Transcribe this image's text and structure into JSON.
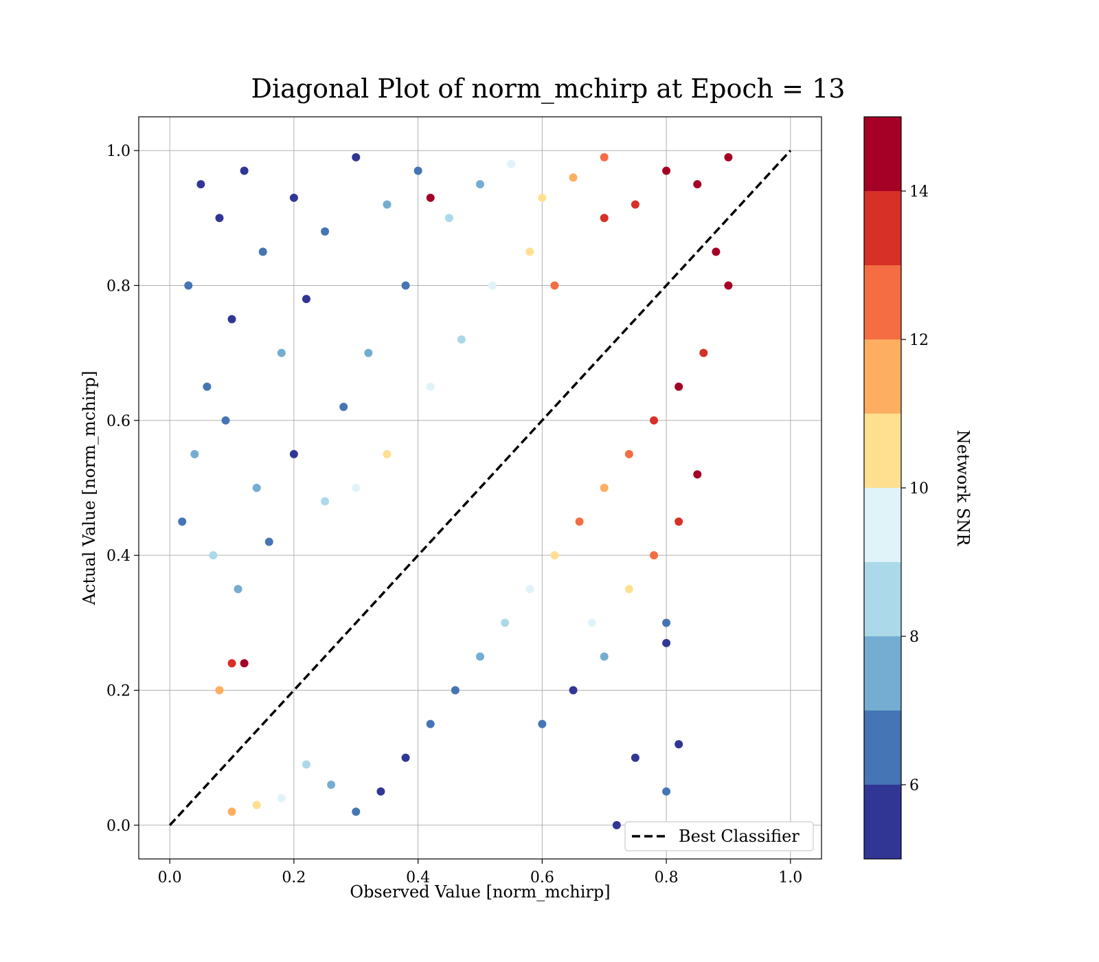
{
  "chart_data": {
    "type": "scatter",
    "title": "Diagonal Plot of norm_mchirp at Epoch = 13",
    "xlabel": "Observed Value [norm_mchirp]",
    "ylabel": "Actual Value [norm_mchirp]",
    "xlim": [
      -0.05,
      1.05
    ],
    "ylim": [
      -0.05,
      1.05
    ],
    "xticks": [
      "0.0",
      "0.2",
      "0.4",
      "0.6",
      "0.8",
      "1.0"
    ],
    "yticks": [
      "0.0",
      "0.2",
      "0.4",
      "0.6",
      "0.8",
      "1.0"
    ],
    "grid": true,
    "legend": {
      "position": "bottom-right",
      "entries": [
        "Best Classifier"
      ]
    },
    "reference_line": {
      "name": "Best Classifier",
      "x": [
        0,
        1
      ],
      "y": [
        0,
        1
      ],
      "style": "dashed",
      "color": "#000000"
    },
    "colorbar": {
      "label": "Network SNR",
      "min": 5,
      "max": 15,
      "ticks": [
        "6",
        "8",
        "10",
        "12",
        "14"
      ],
      "bands": [
        {
          "from": 5,
          "to": 6,
          "color": "#313695"
        },
        {
          "from": 6,
          "to": 7,
          "color": "#4575b4"
        },
        {
          "from": 7,
          "to": 8,
          "color": "#74add1"
        },
        {
          "from": 8,
          "to": 9,
          "color": "#abd9e9"
        },
        {
          "from": 9,
          "to": 10,
          "color": "#e0f3f8"
        },
        {
          "from": 10,
          "to": 11,
          "color": "#fee090"
        },
        {
          "from": 11,
          "to": 12,
          "color": "#fdae61"
        },
        {
          "from": 12,
          "to": 13,
          "color": "#f46d43"
        },
        {
          "from": 13,
          "to": 14,
          "color": "#d73027"
        },
        {
          "from": 14,
          "to": 15,
          "color": "#a50026"
        }
      ]
    },
    "points": [
      {
        "x": 0.05,
        "y": 0.95,
        "snr": 5.2
      },
      {
        "x": 0.08,
        "y": 0.9,
        "snr": 5.5
      },
      {
        "x": 0.12,
        "y": 0.97,
        "snr": 5.8
      },
      {
        "x": 0.15,
        "y": 0.85,
        "snr": 6.2
      },
      {
        "x": 0.2,
        "y": 0.93,
        "snr": 5.1
      },
      {
        "x": 0.25,
        "y": 0.88,
        "snr": 6.5
      },
      {
        "x": 0.3,
        "y": 0.99,
        "snr": 5.3
      },
      {
        "x": 0.03,
        "y": 0.8,
        "snr": 6.8
      },
      {
        "x": 0.1,
        "y": 0.75,
        "snr": 5.6
      },
      {
        "x": 0.18,
        "y": 0.7,
        "snr": 7.2
      },
      {
        "x": 0.06,
        "y": 0.65,
        "snr": 6.1
      },
      {
        "x": 0.22,
        "y": 0.78,
        "snr": 5.4
      },
      {
        "x": 0.35,
        "y": 0.92,
        "snr": 7.5
      },
      {
        "x": 0.4,
        "y": 0.97,
        "snr": 6.9
      },
      {
        "x": 0.45,
        "y": 0.9,
        "snr": 8.2
      },
      {
        "x": 0.5,
        "y": 0.95,
        "snr": 7.8
      },
      {
        "x": 0.55,
        "y": 0.98,
        "snr": 9.5
      },
      {
        "x": 0.6,
        "y": 0.93,
        "snr": 10.5
      },
      {
        "x": 0.65,
        "y": 0.96,
        "snr": 11.2
      },
      {
        "x": 0.7,
        "y": 0.99,
        "snr": 12.4
      },
      {
        "x": 0.04,
        "y": 0.55,
        "snr": 7.1
      },
      {
        "x": 0.09,
        "y": 0.6,
        "snr": 6.4
      },
      {
        "x": 0.14,
        "y": 0.5,
        "snr": 7.6
      },
      {
        "x": 0.02,
        "y": 0.45,
        "snr": 6.7
      },
      {
        "x": 0.07,
        "y": 0.4,
        "snr": 8.1
      },
      {
        "x": 0.11,
        "y": 0.35,
        "snr": 7.9
      },
      {
        "x": 0.16,
        "y": 0.42,
        "snr": 6.3
      },
      {
        "x": 0.2,
        "y": 0.55,
        "snr": 5.9
      },
      {
        "x": 0.28,
        "y": 0.62,
        "snr": 6.6
      },
      {
        "x": 0.32,
        "y": 0.7,
        "snr": 7.4
      },
      {
        "x": 0.38,
        "y": 0.8,
        "snr": 6.2
      },
      {
        "x": 0.25,
        "y": 0.48,
        "snr": 8.8
      },
      {
        "x": 0.3,
        "y": 0.5,
        "snr": 9.6
      },
      {
        "x": 0.35,
        "y": 0.55,
        "snr": 10.8
      },
      {
        "x": 0.42,
        "y": 0.65,
        "snr": 9.2
      },
      {
        "x": 0.47,
        "y": 0.72,
        "snr": 8.6
      },
      {
        "x": 0.52,
        "y": 0.8,
        "snr": 9.9
      },
      {
        "x": 0.58,
        "y": 0.85,
        "snr": 10.7
      },
      {
        "x": 0.62,
        "y": 0.8,
        "snr": 12.1
      },
      {
        "x": 0.7,
        "y": 0.9,
        "snr": 13.2
      },
      {
        "x": 0.75,
        "y": 0.92,
        "snr": 13.8
      },
      {
        "x": 0.8,
        "y": 0.97,
        "snr": 14.3
      },
      {
        "x": 0.85,
        "y": 0.95,
        "snr": 14.7
      },
      {
        "x": 0.9,
        "y": 0.99,
        "snr": 14.6
      },
      {
        "x": 0.88,
        "y": 0.85,
        "snr": 14.5
      },
      {
        "x": 0.9,
        "y": 0.8,
        "snr": 14.2
      },
      {
        "x": 0.86,
        "y": 0.7,
        "snr": 13.6
      },
      {
        "x": 0.82,
        "y": 0.65,
        "snr": 14.8
      },
      {
        "x": 0.78,
        "y": 0.6,
        "snr": 13.1
      },
      {
        "x": 0.74,
        "y": 0.55,
        "snr": 12.6
      },
      {
        "x": 0.7,
        "y": 0.5,
        "snr": 11.6
      },
      {
        "x": 0.66,
        "y": 0.45,
        "snr": 12.8
      },
      {
        "x": 0.62,
        "y": 0.4,
        "snr": 10.3
      },
      {
        "x": 0.58,
        "y": 0.35,
        "snr": 9.7
      },
      {
        "x": 0.54,
        "y": 0.3,
        "snr": 8.4
      },
      {
        "x": 0.5,
        "y": 0.25,
        "snr": 7.7
      },
      {
        "x": 0.46,
        "y": 0.2,
        "snr": 6.8
      },
      {
        "x": 0.42,
        "y": 0.15,
        "snr": 6.1
      },
      {
        "x": 0.38,
        "y": 0.1,
        "snr": 5.7
      },
      {
        "x": 0.34,
        "y": 0.05,
        "snr": 5.3
      },
      {
        "x": 0.3,
        "y": 0.02,
        "snr": 6.4
      },
      {
        "x": 0.26,
        "y": 0.06,
        "snr": 7.3
      },
      {
        "x": 0.22,
        "y": 0.09,
        "snr": 8.7
      },
      {
        "x": 0.18,
        "y": 0.04,
        "snr": 9.4
      },
      {
        "x": 0.14,
        "y": 0.03,
        "snr": 10.6
      },
      {
        "x": 0.1,
        "y": 0.02,
        "snr": 11.8
      },
      {
        "x": 0.6,
        "y": 0.15,
        "snr": 6.6
      },
      {
        "x": 0.65,
        "y": 0.2,
        "snr": 5.8
      },
      {
        "x": 0.7,
        "y": 0.25,
        "snr": 7.2
      },
      {
        "x": 0.75,
        "y": 0.1,
        "snr": 5.4
      },
      {
        "x": 0.8,
        "y": 0.05,
        "snr": 6.9
      },
      {
        "x": 0.72,
        "y": 0.0,
        "snr": 5.6
      },
      {
        "x": 0.68,
        "y": 0.3,
        "snr": 9.8
      },
      {
        "x": 0.74,
        "y": 0.35,
        "snr": 10.9
      },
      {
        "x": 0.78,
        "y": 0.4,
        "snr": 12.3
      },
      {
        "x": 0.82,
        "y": 0.45,
        "snr": 13.4
      },
      {
        "x": 0.85,
        "y": 0.52,
        "snr": 14.1
      },
      {
        "x": 0.8,
        "y": 0.3,
        "snr": 6.3
      },
      {
        "x": 0.82,
        "y": 0.12,
        "snr": 5.2
      },
      {
        "x": 0.8,
        "y": 0.27,
        "snr": 5.5
      },
      {
        "x": 0.1,
        "y": 0.24,
        "snr": 13.7
      },
      {
        "x": 0.12,
        "y": 0.24,
        "snr": 14.9
      },
      {
        "x": 0.42,
        "y": 0.93,
        "snr": 14.4
      },
      {
        "x": 0.08,
        "y": 0.2,
        "snr": 11.4
      }
    ]
  }
}
